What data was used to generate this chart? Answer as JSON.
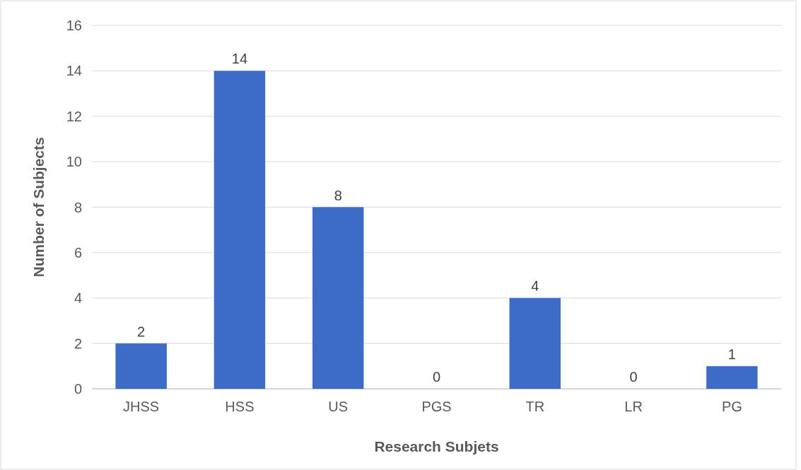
{
  "chart_data": {
    "type": "bar",
    "xlabel": "Research Subjets",
    "ylabel": "Number of Subjects",
    "categories": [
      "JHSS",
      "HSS",
      "US",
      "PGS",
      "TR",
      "LR",
      "PG"
    ],
    "values": [
      2,
      14,
      8,
      0,
      4,
      0,
      1
    ],
    "color": "#3d6bc8",
    "ylim": [
      0,
      16
    ],
    "yticks": [
      0,
      2,
      4,
      6,
      8,
      10,
      12,
      14,
      16
    ],
    "grid": "y",
    "data_labels": true
  }
}
